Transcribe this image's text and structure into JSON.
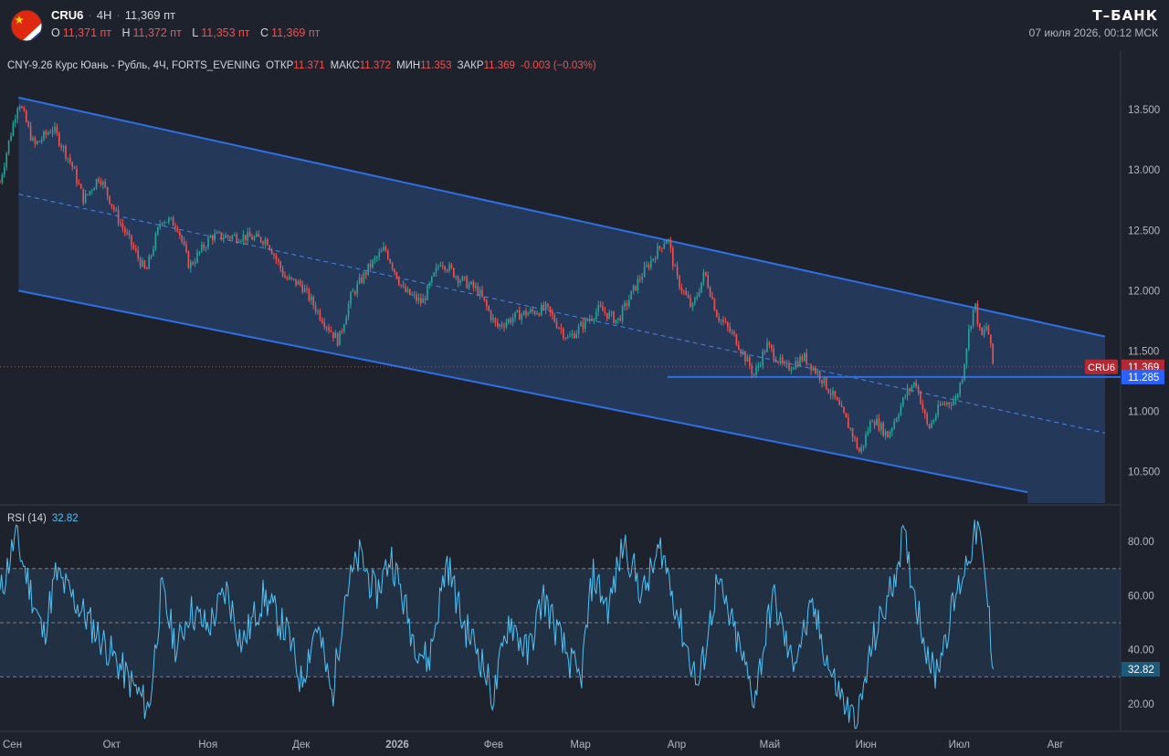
{
  "header": {
    "symbol": "CRU6",
    "timeframe": "4H",
    "price": "11,369 пт",
    "ohlc": [
      {
        "key": "O",
        "value": "11,371 пт"
      },
      {
        "key": "H",
        "value": "11,372 пт"
      },
      {
        "key": "L",
        "value": "11,353 пт"
      },
      {
        "key": "C",
        "value": "11,369 пт"
      }
    ],
    "brand": "Т–БАНК",
    "datetime": "07 июля 2026, 00:12 МСК"
  },
  "colors": {
    "background": "#1e222d",
    "up": "#26a69a",
    "down": "#ef5350",
    "channel_line": "#2f6fe4",
    "channel_fill": "#2a4a80",
    "rsi_line": "#4fc3f7",
    "red_label": "#b22833",
    "blue_label": "#2962ff"
  },
  "icons": {
    "flag": "china-russia-flag-icon"
  },
  "chart_data": [
    {
      "type": "candlestick",
      "legend": {
        "name": "CNY-9.26 Курс Юань - Рубль, 4Ч, FORTS_EVENING",
        "open_label": "ОТКР",
        "open": "11.371",
        "high_label": "МАКС",
        "high": "11.372",
        "low_label": "МИН",
        "low": "11.353",
        "close_label": "ЗАКР",
        "close": "11.369",
        "change": "-0.003 (−0.03%)"
      },
      "y_ticks": [
        "13.500",
        "13.000",
        "12.500",
        "12.000",
        "11.500",
        "11.000",
        "10.500"
      ],
      "x_ticks": [
        "Сен",
        "Окт",
        "Ноя",
        "Дек",
        "2026",
        "Фев",
        "Мар",
        "Апр",
        "Май",
        "Июн",
        "Июл",
        "Авг"
      ],
      "ylim": [
        10.24,
        13.97
      ],
      "price_path": [
        {
          "x": "2025-08-26",
          "y": 12.9
        },
        {
          "x": "2025-08-29",
          "y": 13.25
        },
        {
          "x": "2025-09-01",
          "y": 13.58
        },
        {
          "x": "2025-09-06",
          "y": 13.2
        },
        {
          "x": "2025-09-12",
          "y": 13.35
        },
        {
          "x": "2025-09-18",
          "y": 13.05
        },
        {
          "x": "2025-09-22",
          "y": 12.75
        },
        {
          "x": "2025-09-27",
          "y": 12.95
        },
        {
          "x": "2025-10-03",
          "y": 12.6
        },
        {
          "x": "2025-10-12",
          "y": 12.15
        },
        {
          "x": "2025-10-17",
          "y": 12.6
        },
        {
          "x": "2025-10-22",
          "y": 12.55
        },
        {
          "x": "2025-10-26",
          "y": 12.2
        },
        {
          "x": "2025-11-02",
          "y": 12.45
        },
        {
          "x": "2025-11-12",
          "y": 12.45
        },
        {
          "x": "2025-11-20",
          "y": 12.42
        },
        {
          "x": "2025-11-26",
          "y": 12.1
        },
        {
          "x": "2025-12-01",
          "y": 12.05
        },
        {
          "x": "2025-12-07",
          "y": 11.8
        },
        {
          "x": "2025-12-13",
          "y": 11.58
        },
        {
          "x": "2025-12-17",
          "y": 11.95
        },
        {
          "x": "2025-12-23",
          "y": 12.2
        },
        {
          "x": "2025-12-28",
          "y": 12.35
        },
        {
          "x": "2026-01-03",
          "y": 12.0
        },
        {
          "x": "2026-01-09",
          "y": 11.9
        },
        {
          "x": "2026-01-15",
          "y": 12.25
        },
        {
          "x": "2026-01-21",
          "y": 12.1
        },
        {
          "x": "2026-01-27",
          "y": 12.0
        },
        {
          "x": "2026-02-02",
          "y": 11.7
        },
        {
          "x": "2026-02-09",
          "y": 11.8
        },
        {
          "x": "2026-02-18",
          "y": 11.85
        },
        {
          "x": "2026-02-25",
          "y": 11.6
        },
        {
          "x": "2026-03-01",
          "y": 11.7
        },
        {
          "x": "2026-03-07",
          "y": 11.85
        },
        {
          "x": "2026-03-13",
          "y": 11.75
        },
        {
          "x": "2026-03-20",
          "y": 12.1
        },
        {
          "x": "2026-03-25",
          "y": 12.3
        },
        {
          "x": "2026-03-29",
          "y": 12.45
        },
        {
          "x": "2026-04-01",
          "y": 12.1
        },
        {
          "x": "2026-04-06",
          "y": 11.85
        },
        {
          "x": "2026-04-10",
          "y": 12.15
        },
        {
          "x": "2026-04-14",
          "y": 11.8
        },
        {
          "x": "2026-04-20",
          "y": 11.6
        },
        {
          "x": "2026-04-26",
          "y": 11.3
        },
        {
          "x": "2026-04-30",
          "y": 11.55
        },
        {
          "x": "2026-05-06",
          "y": 11.35
        },
        {
          "x": "2026-05-12",
          "y": 11.45
        },
        {
          "x": "2026-05-17",
          "y": 11.3
        },
        {
          "x": "2026-05-22",
          "y": 11.1
        },
        {
          "x": "2026-05-27",
          "y": 10.85
        },
        {
          "x": "2026-05-30",
          "y": 10.65
        },
        {
          "x": "2026-06-03",
          "y": 10.95
        },
        {
          "x": "2026-06-08",
          "y": 10.8
        },
        {
          "x": "2026-06-14",
          "y": 11.15
        },
        {
          "x": "2026-06-17",
          "y": 11.25
        },
        {
          "x": "2026-06-21",
          "y": 10.85
        },
        {
          "x": "2026-06-25",
          "y": 11.05
        },
        {
          "x": "2026-06-30",
          "y": 11.1
        },
        {
          "x": "2026-07-02",
          "y": 11.3
        },
        {
          "x": "2026-07-04",
          "y": 11.65
        },
        {
          "x": "2026-07-06",
          "y": 11.9
        },
        {
          "x": "2026-07-08",
          "y": 11.6
        },
        {
          "x": "2026-07-10",
          "y": 11.72
        },
        {
          "x": "2026-07-12",
          "y": 11.369
        }
      ],
      "channel": {
        "upper": [
          {
            "x": "2025-09-01",
            "y": 13.6
          },
          {
            "x": "2026-08-17",
            "y": 11.62
          }
        ],
        "middle": [
          {
            "x": "2025-09-01",
            "y": 12.8
          },
          {
            "x": "2026-08-17",
            "y": 10.82
          }
        ],
        "lower": [
          {
            "x": "2025-09-01",
            "y": 12.0
          },
          {
            "x": "2026-07-23",
            "y": 10.33
          }
        ]
      },
      "horizontal_line": {
        "from": "2026-03-29",
        "value": 11.285
      },
      "price_labels": [
        {
          "tag": "CRU6",
          "value": "11.369"
        },
        {
          "value": "11.285"
        }
      ]
    },
    {
      "type": "line",
      "name": "RSI (14)",
      "last_value": "32.82",
      "y_ticks": [
        "80.00",
        "60.00",
        "40.00",
        "20.00"
      ],
      "ylim": [
        10.2,
        92.5
      ],
      "levels": [
        70,
        50,
        30
      ],
      "series_shape": [
        {
          "x": "2025-08-26",
          "y": 60
        },
        {
          "x": "2025-08-31",
          "y": 82
        },
        {
          "x": "2025-09-09",
          "y": 45
        },
        {
          "x": "2025-09-13",
          "y": 68
        },
        {
          "x": "2025-09-21",
          "y": 55
        },
        {
          "x": "2025-09-30",
          "y": 40
        },
        {
          "x": "2025-10-07",
          "y": 28
        },
        {
          "x": "2025-10-13",
          "y": 18
        },
        {
          "x": "2025-10-17",
          "y": 62
        },
        {
          "x": "2025-10-22",
          "y": 40
        },
        {
          "x": "2025-10-26",
          "y": 55
        },
        {
          "x": "2025-11-01",
          "y": 48
        },
        {
          "x": "2025-11-07",
          "y": 62
        },
        {
          "x": "2025-11-12",
          "y": 42
        },
        {
          "x": "2025-11-19",
          "y": 60
        },
        {
          "x": "2025-11-27",
          "y": 45
        },
        {
          "x": "2025-12-01",
          "y": 28
        },
        {
          "x": "2025-12-06",
          "y": 50
        },
        {
          "x": "2025-12-11",
          "y": 22
        },
        {
          "x": "2025-12-15",
          "y": 60
        },
        {
          "x": "2025-12-20",
          "y": 75
        },
        {
          "x": "2025-12-25",
          "y": 60
        },
        {
          "x": "2025-12-30",
          "y": 75
        },
        {
          "x": "2026-01-06",
          "y": 45
        },
        {
          "x": "2026-01-11",
          "y": 35
        },
        {
          "x": "2026-01-17",
          "y": 73
        },
        {
          "x": "2026-01-22",
          "y": 50
        },
        {
          "x": "2026-01-27",
          "y": 40
        },
        {
          "x": "2026-02-01",
          "y": 22
        },
        {
          "x": "2026-02-06",
          "y": 52
        },
        {
          "x": "2026-02-12",
          "y": 38
        },
        {
          "x": "2026-02-17",
          "y": 60
        },
        {
          "x": "2026-02-23",
          "y": 42
        },
        {
          "x": "2026-03-01",
          "y": 28
        },
        {
          "x": "2026-03-05",
          "y": 68
        },
        {
          "x": "2026-03-10",
          "y": 55
        },
        {
          "x": "2026-03-15",
          "y": 80
        },
        {
          "x": "2026-03-21",
          "y": 60
        },
        {
          "x": "2026-03-27",
          "y": 78
        },
        {
          "x": "2026-04-02",
          "y": 50
        },
        {
          "x": "2026-04-08",
          "y": 26
        },
        {
          "x": "2026-04-14",
          "y": 65
        },
        {
          "x": "2026-04-20",
          "y": 45
        },
        {
          "x": "2026-04-26",
          "y": 22
        },
        {
          "x": "2026-05-02",
          "y": 60
        },
        {
          "x": "2026-05-08",
          "y": 35
        },
        {
          "x": "2026-05-15",
          "y": 55
        },
        {
          "x": "2026-05-21",
          "y": 30
        },
        {
          "x": "2026-05-26",
          "y": 18
        },
        {
          "x": "2026-05-29",
          "y": 12
        },
        {
          "x": "2026-06-03",
          "y": 42
        },
        {
          "x": "2026-06-09",
          "y": 62
        },
        {
          "x": "2026-06-13",
          "y": 82
        },
        {
          "x": "2026-06-19",
          "y": 48
        },
        {
          "x": "2026-06-23",
          "y": 30
        },
        {
          "x": "2026-06-30",
          "y": 60
        },
        {
          "x": "2026-07-04",
          "y": 75
        },
        {
          "x": "2026-07-07",
          "y": 86
        },
        {
          "x": "2026-07-10",
          "y": 60
        },
        {
          "x": "2026-07-12",
          "y": 32.82
        }
      ]
    }
  ]
}
